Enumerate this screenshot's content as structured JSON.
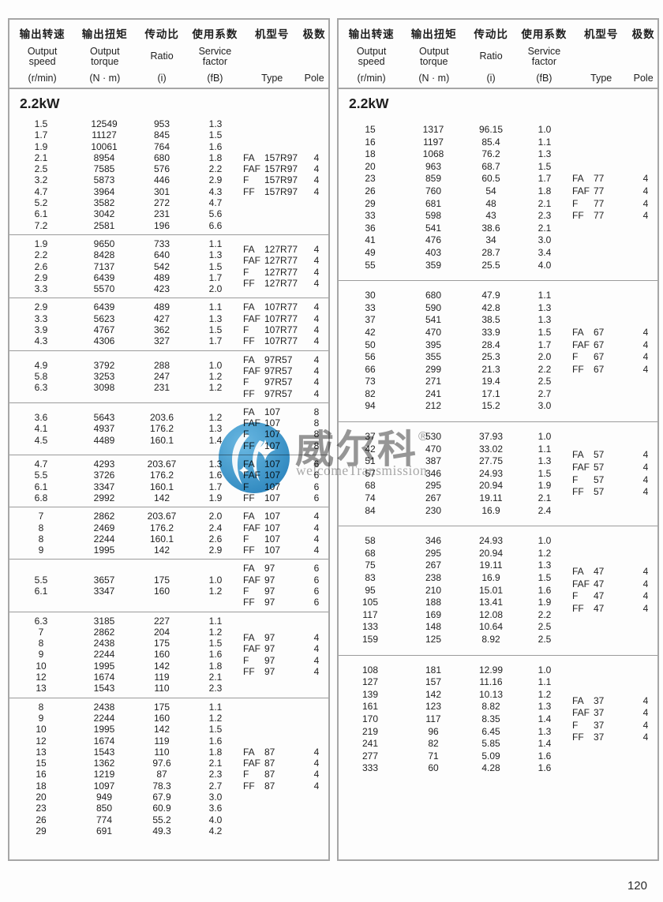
{
  "page": {
    "number": "120"
  },
  "header": {
    "col_speed": {
      "zh": "输出转速",
      "en1": "Output",
      "en2": "speed",
      "unit": "(r/min)"
    },
    "col_torque": {
      "zh": "输出扭矩",
      "en1": "Output",
      "en2": "torque",
      "unit": "(N · m)"
    },
    "col_ratio": {
      "zh": "传动比",
      "en1": "Ratio",
      "unit": "(i)"
    },
    "col_factor": {
      "zh": "使用系数",
      "en1": "Service",
      "en2": "factor",
      "unit": "(fB)"
    },
    "col_type": {
      "zh": "机型号",
      "unit": "Type"
    },
    "col_pole": {
      "zh": "极数",
      "unit": "Pole"
    }
  },
  "left": {
    "section_title": "2.2kW",
    "blocks": [
      {
        "rows": [
          [
            "1.5",
            "12549",
            "953",
            "1.3"
          ],
          [
            "1.7",
            "11127",
            "845",
            "1.5"
          ],
          [
            "1.9",
            "10061",
            "764",
            "1.6"
          ],
          [
            "2.1",
            "8954",
            "680",
            "1.8"
          ],
          [
            "2.5",
            "7585",
            "576",
            "2.2"
          ],
          [
            "3.2",
            "5873",
            "446",
            "2.9"
          ],
          [
            "4.7",
            "3964",
            "301",
            "4.3"
          ],
          [
            "5.2",
            "3582",
            "272",
            "4.7"
          ],
          [
            "6.1",
            "3042",
            "231",
            "5.6"
          ],
          [
            "7.2",
            "2581",
            "196",
            "6.6"
          ]
        ],
        "types": [
          [
            "FA",
            "157R97",
            "4"
          ],
          [
            "FAF",
            "157R97",
            "4"
          ],
          [
            "F",
            "157R97",
            "4"
          ],
          [
            "FF",
            "157R97",
            "4"
          ]
        ]
      },
      {
        "rows": [
          [
            "1.9",
            "9650",
            "733",
            "1.1"
          ],
          [
            "2.2",
            "8428",
            "640",
            "1.3"
          ],
          [
            "2.6",
            "7137",
            "542",
            "1.5"
          ],
          [
            "2.9",
            "6439",
            "489",
            "1.7"
          ],
          [
            "3.3",
            "5570",
            "423",
            "2.0"
          ]
        ],
        "types": [
          [
            "FA",
            "127R77",
            "4"
          ],
          [
            "FAF",
            "127R77",
            "4"
          ],
          [
            "F",
            "127R77",
            "4"
          ],
          [
            "FF",
            "127R77",
            "4"
          ]
        ]
      },
      {
        "rows": [
          [
            "2.9",
            "6439",
            "489",
            "1.1"
          ],
          [
            "3.3",
            "5623",
            "427",
            "1.3"
          ],
          [
            "3.9",
            "4767",
            "362",
            "1.5"
          ],
          [
            "4.3",
            "4306",
            "327",
            "1.7"
          ]
        ],
        "types": [
          [
            "FA",
            "107R77",
            "4"
          ],
          [
            "FAF",
            "107R77",
            "4"
          ],
          [
            "F",
            "107R77",
            "4"
          ],
          [
            "FF",
            "107R77",
            "4"
          ]
        ]
      },
      {
        "rows": [
          [
            "4.9",
            "3792",
            "288",
            "1.0"
          ],
          [
            "5.8",
            "3253",
            "247",
            "1.2"
          ],
          [
            "6.3",
            "3098",
            "231",
            "1.2"
          ]
        ],
        "types": [
          [
            "FA",
            "97R57",
            "4"
          ],
          [
            "FAF",
            "97R57",
            "4"
          ],
          [
            "F",
            "97R57",
            "4"
          ],
          [
            "FF",
            "97R57",
            "4"
          ]
        ]
      },
      {
        "rows": [
          [
            "3.6",
            "5643",
            "203.6",
            "1.2"
          ],
          [
            "4.1",
            "4937",
            "176.2",
            "1.3"
          ],
          [
            "4.5",
            "4489",
            "160.1",
            "1.4"
          ]
        ],
        "types": [
          [
            "FA",
            "107",
            "8"
          ],
          [
            "FAF",
            "107",
            "8"
          ],
          [
            "F",
            "107",
            "8"
          ],
          [
            "FF",
            "107",
            "8"
          ]
        ]
      },
      {
        "rows": [
          [
            "4.7",
            "4293",
            "203.67",
            "1.3"
          ],
          [
            "5.5",
            "3726",
            "176.2",
            "1.6"
          ],
          [
            "6.1",
            "3347",
            "160.1",
            "1.7"
          ],
          [
            "6.8",
            "2992",
            "142",
            "1.9"
          ]
        ],
        "types": [
          [
            "FA",
            "107",
            "6"
          ],
          [
            "FAF",
            "107",
            "6"
          ],
          [
            "F",
            "107",
            "6"
          ],
          [
            "FF",
            "107",
            "6"
          ]
        ]
      },
      {
        "rows": [
          [
            "7",
            "2862",
            "203.67",
            "2.0"
          ],
          [
            "8",
            "2469",
            "176.2",
            "2.4"
          ],
          [
            "8",
            "2244",
            "160.1",
            "2.6"
          ],
          [
            "9",
            "1995",
            "142",
            "2.9"
          ]
        ],
        "types": [
          [
            "FA",
            "107",
            "4"
          ],
          [
            "FAF",
            "107",
            "4"
          ],
          [
            "F",
            "107",
            "4"
          ],
          [
            "FF",
            "107",
            "4"
          ]
        ]
      },
      {
        "rows": [
          [
            "5.5",
            "3657",
            "175",
            "1.0"
          ],
          [
            "6.1",
            "3347",
            "160",
            "1.2"
          ]
        ],
        "types": [
          [
            "FA",
            "97",
            "6"
          ],
          [
            "FAF",
            "97",
            "6"
          ],
          [
            "F",
            "97",
            "6"
          ],
          [
            "FF",
            "97",
            "6"
          ]
        ]
      },
      {
        "rows": [
          [
            "6.3",
            "3185",
            "227",
            "1.1"
          ],
          [
            "7",
            "2862",
            "204",
            "1.2"
          ],
          [
            "8",
            "2438",
            "175",
            "1.5"
          ],
          [
            "9",
            "2244",
            "160",
            "1.6"
          ],
          [
            "10",
            "1995",
            "142",
            "1.8"
          ],
          [
            "12",
            "1674",
            "119",
            "2.1"
          ],
          [
            "13",
            "1543",
            "110",
            "2.3"
          ]
        ],
        "types": [
          [
            "FA",
            "97",
            "4"
          ],
          [
            "FAF",
            "97",
            "4"
          ],
          [
            "F",
            "97",
            "4"
          ],
          [
            "FF",
            "97",
            "4"
          ]
        ]
      },
      {
        "rows": [
          [
            "8",
            "2438",
            "175",
            "1.1"
          ],
          [
            "9",
            "2244",
            "160",
            "1.2"
          ],
          [
            "10",
            "1995",
            "142",
            "1.5"
          ],
          [
            "12",
            "1674",
            "119",
            "1.6"
          ],
          [
            "13",
            "1543",
            "110",
            "1.8"
          ],
          [
            "15",
            "1362",
            "97.6",
            "2.1"
          ],
          [
            "16",
            "1219",
            "87",
            "2.3"
          ],
          [
            "18",
            "1097",
            "78.3",
            "2.7"
          ],
          [
            "20",
            "949",
            "67.9",
            "3.0"
          ],
          [
            "23",
            "850",
            "60.9",
            "3.6"
          ],
          [
            "26",
            "774",
            "55.2",
            "4.0"
          ],
          [
            "29",
            "691",
            "49.3",
            "4.2"
          ]
        ],
        "types": [
          [
            "FA",
            "87",
            "4"
          ],
          [
            "FAF",
            "87",
            "4"
          ],
          [
            "F",
            "87",
            "4"
          ],
          [
            "FF",
            "87",
            "4"
          ]
        ]
      }
    ]
  },
  "right": {
    "section_title": "2.2kW",
    "blocks": [
      {
        "rows": [
          [
            "15",
            "1317",
            "96.15",
            "1.0"
          ],
          [
            "16",
            "1197",
            "85.4",
            "1.1"
          ],
          [
            "18",
            "1068",
            "76.2",
            "1.3"
          ],
          [
            "20",
            "963",
            "68.7",
            "1.5"
          ],
          [
            "23",
            "859",
            "60.5",
            "1.7"
          ],
          [
            "26",
            "760",
            "54",
            "1.8"
          ],
          [
            "29",
            "681",
            "48",
            "2.1"
          ],
          [
            "33",
            "598",
            "43",
            "2.3"
          ],
          [
            "36",
            "541",
            "38.6",
            "2.1"
          ],
          [
            "41",
            "476",
            "34",
            "3.0"
          ],
          [
            "49",
            "403",
            "28.7",
            "3.4"
          ],
          [
            "55",
            "359",
            "25.5",
            "4.0"
          ]
        ],
        "types": [
          [
            "FA",
            "77",
            "4"
          ],
          [
            "FAF",
            "77",
            "4"
          ],
          [
            "F",
            "77",
            "4"
          ],
          [
            "FF",
            "77",
            "4"
          ]
        ]
      },
      {
        "rows": [
          [
            "30",
            "680",
            "47.9",
            "1.1"
          ],
          [
            "33",
            "590",
            "42.8",
            "1.3"
          ],
          [
            "37",
            "541",
            "38.5",
            "1.3"
          ],
          [
            "42",
            "470",
            "33.9",
            "1.5"
          ],
          [
            "50",
            "395",
            "28.4",
            "1.7"
          ],
          [
            "56",
            "355",
            "25.3",
            "2.0"
          ],
          [
            "66",
            "299",
            "21.3",
            "2.2"
          ],
          [
            "73",
            "271",
            "19.4",
            "2.5"
          ],
          [
            "82",
            "241",
            "17.1",
            "2.7"
          ],
          [
            "94",
            "212",
            "15.2",
            "3.0"
          ]
        ],
        "types": [
          [
            "FA",
            "67",
            "4"
          ],
          [
            "FAF",
            "67",
            "4"
          ],
          [
            "F",
            "67",
            "4"
          ],
          [
            "FF",
            "67",
            "4"
          ]
        ]
      },
      {
        "rows": [
          [
            "37",
            "530",
            "37.93",
            "1.0"
          ],
          [
            "42",
            "470",
            "33.02",
            "1.1"
          ],
          [
            "51",
            "387",
            "27.75",
            "1.3"
          ],
          [
            "57",
            "346",
            "24.93",
            "1.5"
          ],
          [
            "68",
            "295",
            "20.94",
            "1.9"
          ],
          [
            "74",
            "267",
            "19.11",
            "2.1"
          ],
          [
            "84",
            "230",
            "16.9",
            "2.4"
          ]
        ],
        "types": [
          [
            "FA",
            "57",
            "4"
          ],
          [
            "FAF",
            "57",
            "4"
          ],
          [
            "F",
            "57",
            "4"
          ],
          [
            "FF",
            "57",
            "4"
          ]
        ]
      },
      {
        "rows": [
          [
            "58",
            "346",
            "24.93",
            "1.0"
          ],
          [
            "68",
            "295",
            "20.94",
            "1.2"
          ],
          [
            "75",
            "267",
            "19.11",
            "1.3"
          ],
          [
            "83",
            "238",
            "16.9",
            "1.5"
          ],
          [
            "95",
            "210",
            "15.01",
            "1.6"
          ],
          [
            "105",
            "188",
            "13.41",
            "1.9"
          ],
          [
            "117",
            "169",
            "12.08",
            "2.2"
          ],
          [
            "133",
            "148",
            "10.64",
            "2.5"
          ],
          [
            "159",
            "125",
            "8.92",
            "2.5"
          ]
        ],
        "types": [
          [
            "FA",
            "47",
            "4"
          ],
          [
            "FAF",
            "47",
            "4"
          ],
          [
            "F",
            "47",
            "4"
          ],
          [
            "FF",
            "47",
            "4"
          ]
        ]
      },
      {
        "rows": [
          [
            "108",
            "181",
            "12.99",
            "1.0"
          ],
          [
            "127",
            "157",
            "11.16",
            "1.1"
          ],
          [
            "139",
            "142",
            "10.13",
            "1.2"
          ],
          [
            "161",
            "123",
            "8.82",
            "1.3"
          ],
          [
            "170",
            "117",
            "8.35",
            "1.4"
          ],
          [
            "219",
            "96",
            "6.45",
            "1.3"
          ],
          [
            "241",
            "82",
            "5.85",
            "1.4"
          ],
          [
            "277",
            "71",
            "5.09",
            "1.6"
          ],
          [
            "333",
            "60",
            "4.28",
            "1.6"
          ]
        ],
        "types": [
          [
            "FA",
            "37",
            "4"
          ],
          [
            "FAF",
            "37",
            "4"
          ],
          [
            "F",
            "37",
            "4"
          ],
          [
            "FF",
            "37",
            "4"
          ]
        ]
      }
    ]
  },
  "watermark": {
    "cn": "威尔科",
    "reg": "®",
    "en": "welcomeTransmission"
  },
  "colors": {
    "logo_blue": "#2b93cf",
    "watermark_gray": "#979797",
    "border_gray": "#a6a6a6"
  }
}
